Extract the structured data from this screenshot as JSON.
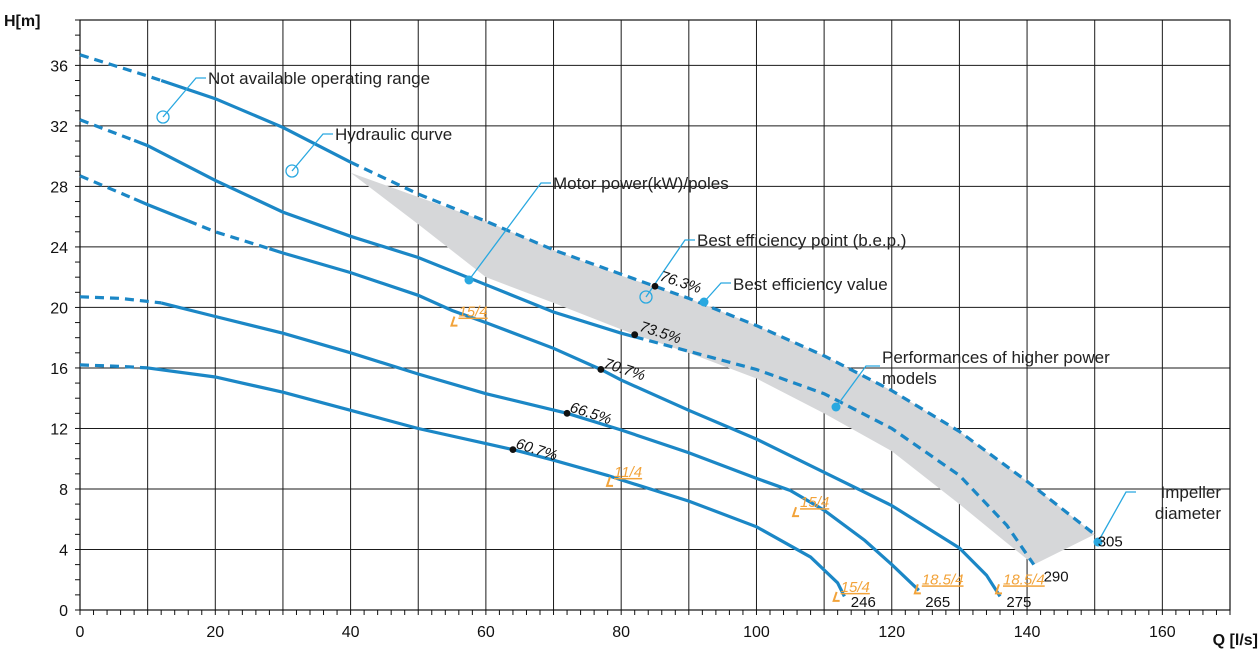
{
  "chart_data": {
    "type": "line",
    "xlabel": "Q [l/s]",
    "ylabel": "H[m]",
    "xlim": [
      0,
      170
    ],
    "ylim": [
      0,
      39
    ],
    "x_ticks": [
      0,
      20,
      40,
      60,
      80,
      100,
      120,
      140,
      160
    ],
    "y_ticks": [
      0,
      4,
      8,
      12,
      16,
      20,
      24,
      28,
      32,
      36
    ],
    "grid": true,
    "colors": {
      "curve": "#1b87c6",
      "shade": "#d6d7d9",
      "motor": "#f2a33a",
      "callout": "#29a8e0",
      "grid": "#1a1a1a"
    },
    "series": [
      {
        "name": "305",
        "points": [
          [
            0,
            36.7
          ],
          [
            10,
            35.3
          ],
          [
            20,
            33.8
          ],
          [
            30,
            31.9
          ],
          [
            40,
            29.6
          ],
          [
            50,
            27.5
          ],
          [
            60,
            25.7
          ],
          [
            70,
            23.8
          ],
          [
            80,
            22.2
          ],
          [
            85,
            21.4
          ],
          [
            90,
            20.6
          ],
          [
            100,
            18.8
          ],
          [
            110,
            16.8
          ],
          [
            120,
            14.5
          ],
          [
            130,
            11.8
          ],
          [
            140,
            8.5
          ],
          [
            150,
            5.0
          ]
        ],
        "dashed_ranges": [
          [
            0,
            12
          ],
          [
            40,
            150
          ]
        ]
      },
      {
        "name": "290",
        "points": [
          [
            0,
            32.4
          ],
          [
            10,
            30.7
          ],
          [
            20,
            28.4
          ],
          [
            30,
            26.3
          ],
          [
            40,
            24.7
          ],
          [
            50,
            23.3
          ],
          [
            60,
            21.5
          ],
          [
            70,
            19.7
          ],
          [
            80,
            18.3
          ],
          [
            90,
            17.1
          ],
          [
            100,
            15.9
          ],
          [
            110,
            14.3
          ],
          [
            120,
            12.0
          ],
          [
            130,
            8.9
          ],
          [
            137,
            5.6
          ],
          [
            141,
            3.0
          ]
        ],
        "dashed_ranges": [
          [
            0,
            8
          ],
          [
            82,
            141
          ]
        ]
      },
      {
        "name": "275",
        "points": [
          [
            0,
            28.7
          ],
          [
            10,
            26.8
          ],
          [
            20,
            25.0
          ],
          [
            30,
            23.6
          ],
          [
            40,
            22.3
          ],
          [
            50,
            20.8
          ],
          [
            55,
            19.8
          ],
          [
            60,
            19.0
          ],
          [
            70,
            17.3
          ],
          [
            77,
            15.9
          ],
          [
            80,
            15.2
          ],
          [
            90,
            13.2
          ],
          [
            100,
            11.3
          ],
          [
            110,
            9.1
          ],
          [
            120,
            6.9
          ],
          [
            130,
            4.1
          ],
          [
            134,
            2.3
          ],
          [
            136,
            0.9
          ]
        ],
        "dashed_ranges": [
          [
            0,
            8
          ],
          [
            16,
            28
          ]
        ]
      },
      {
        "name": "265",
        "points": [
          [
            0,
            20.7
          ],
          [
            6,
            20.6
          ],
          [
            12,
            20.3
          ],
          [
            20,
            19.4
          ],
          [
            30,
            18.3
          ],
          [
            40,
            17.0
          ],
          [
            50,
            15.6
          ],
          [
            60,
            14.3
          ],
          [
            72,
            13.0
          ],
          [
            80,
            11.9
          ],
          [
            90,
            10.4
          ],
          [
            100,
            8.7
          ],
          [
            105,
            7.9
          ],
          [
            110,
            6.6
          ],
          [
            116,
            4.6
          ],
          [
            120,
            3.0
          ],
          [
            124,
            1.3
          ]
        ],
        "dashed_ranges": [
          [
            0,
            12
          ]
        ]
      },
      {
        "name": "246",
        "points": [
          [
            0,
            16.2
          ],
          [
            6,
            16.1
          ],
          [
            10,
            16.0
          ],
          [
            20,
            15.4
          ],
          [
            30,
            14.4
          ],
          [
            40,
            13.2
          ],
          [
            50,
            12.0
          ],
          [
            60,
            11.0
          ],
          [
            64,
            10.6
          ],
          [
            70,
            9.9
          ],
          [
            78,
            8.9
          ],
          [
            80,
            8.6
          ],
          [
            90,
            7.2
          ],
          [
            100,
            5.5
          ],
          [
            108,
            3.5
          ],
          [
            112,
            1.8
          ],
          [
            113,
            0.9
          ]
        ],
        "dashed_ranges": [
          [
            0,
            10
          ]
        ]
      }
    ],
    "shaded_region": [
      [
        40,
        28.9
      ],
      [
        50,
        27.3
      ],
      [
        60,
        25.7
      ],
      [
        70,
        23.8
      ],
      [
        80,
        22.1
      ],
      [
        90,
        20.6
      ],
      [
        100,
        18.8
      ],
      [
        110,
        16.8
      ],
      [
        120,
        14.5
      ],
      [
        130,
        11.8
      ],
      [
        140,
        8.5
      ],
      [
        150,
        5.0
      ],
      [
        141,
        3.0
      ],
      [
        136,
        4.8
      ],
      [
        130,
        7.0
      ],
      [
        120,
        10.5
      ],
      [
        110,
        13.0
      ],
      [
        100,
        15.3
      ],
      [
        90,
        17.0
      ],
      [
        82,
        18.2
      ],
      [
        70,
        20.3
      ],
      [
        60,
        22.0
      ],
      [
        50,
        25.5
      ]
    ],
    "bep_points": [
      {
        "label": "76.3%",
        "q": 85,
        "h": 21.4
      },
      {
        "label": "73.5%",
        "q": 82,
        "h": 18.2
      },
      {
        "label": "70.7%",
        "q": 77,
        "h": 15.9
      },
      {
        "label": "66.5%",
        "q": 72,
        "h": 13.0
      },
      {
        "label": "60.7%",
        "q": 64,
        "h": 10.6
      }
    ],
    "motor_labels": [
      {
        "label": "15/4",
        "q": 55.5,
        "h": 19.0
      },
      {
        "label": "11/4",
        "q": 78.5,
        "h": 8.4
      },
      {
        "label": "15/4",
        "q": 106,
        "h": 6.4
      },
      {
        "label": "15/4",
        "q": 112,
        "h": 0.8
      },
      {
        "label": "18.5/4",
        "q": 124,
        "h": 1.3
      },
      {
        "label": "18.5/4",
        "q": 136,
        "h": 1.3
      }
    ],
    "diameter_labels": [
      {
        "label": "305",
        "q": 150,
        "h": 4.2
      },
      {
        "label": "290",
        "q": 142,
        "h": 1.9
      },
      {
        "label": "275",
        "q": 136.5,
        "h": 0.2
      },
      {
        "label": "265",
        "q": 124.5,
        "h": 0.2
      },
      {
        "label": "246",
        "q": 113.5,
        "h": 0.2
      }
    ],
    "annotations": [
      {
        "id": "not-available",
        "lines": [
          "Not available operating range"
        ]
      },
      {
        "id": "hydraulic",
        "lines": [
          "Hydraulic curve"
        ]
      },
      {
        "id": "motor-power",
        "lines": [
          "Motor power(kW)/poles"
        ]
      },
      {
        "id": "bep",
        "lines": [
          "Best efficiency point (b.e.p.)"
        ]
      },
      {
        "id": "bev",
        "lines": [
          "Best efficiency value"
        ]
      },
      {
        "id": "higher-power",
        "lines": [
          "Performances of higher power",
          "models"
        ]
      },
      {
        "id": "impeller",
        "lines": [
          "Impeller",
          "diameter"
        ]
      }
    ]
  }
}
